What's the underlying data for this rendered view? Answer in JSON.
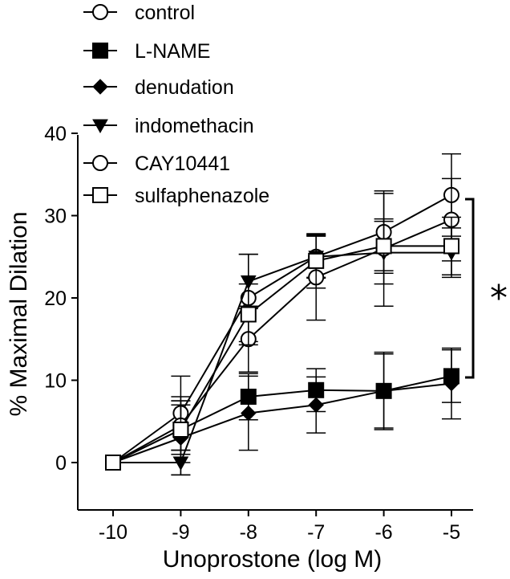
{
  "chart_data": {
    "type": "line",
    "title": "",
    "xlabel": "Unoprostone (log M)",
    "ylabel": "% Maximal Dilation",
    "xlim": [
      -10,
      -5
    ],
    "ylim": [
      0,
      40
    ],
    "x_ticks": [
      -10,
      -9,
      -8,
      -7,
      -6,
      -5
    ],
    "x_tick_labels": [
      "-10",
      "-9",
      "-8",
      "-7",
      "-6",
      "-5"
    ],
    "y_ticks": [
      0,
      10,
      20,
      30,
      40
    ],
    "y_tick_labels": [
      "0",
      "10",
      "20",
      "30",
      "40"
    ],
    "grid": false,
    "legend_position": "top-left",
    "x": [
      -10,
      -9,
      -8,
      -7,
      -6,
      -5
    ],
    "series": [
      {
        "name": "control",
        "marker": "circle-open",
        "values": [
          0,
          6,
          20,
          25,
          28,
          32.5
        ],
        "errors": [
          0,
          4.5,
          5.3,
          2.6,
          4.7,
          5
        ]
      },
      {
        "name": "L-NAME",
        "marker": "square-filled",
        "values": [
          0,
          4,
          8,
          8.8,
          8.7,
          10.5
        ],
        "errors": [
          0,
          4,
          2.8,
          2.6,
          4.5,
          3.2
        ]
      },
      {
        "name": "denudation",
        "marker": "diamond-filled",
        "values": [
          0,
          3,
          6,
          7,
          8.7,
          9.6
        ],
        "errors": [
          0,
          4.5,
          4.5,
          3.4,
          4.7,
          4.3
        ]
      },
      {
        "name": "indomethacin",
        "marker": "triangle-down-filled",
        "values": [
          0,
          0,
          22,
          25,
          25.5,
          25.5
        ],
        "errors": [
          0,
          1.5,
          3.3,
          2.5,
          3.8,
          3
        ]
      },
      {
        "name": "CAY10441",
        "marker": "circle-open",
        "values": [
          0,
          4.5,
          15,
          22.5,
          26,
          29.5
        ],
        "errors": [
          0,
          3,
          4,
          5.2,
          7,
          5
        ]
      },
      {
        "name": "sulfaphenazole",
        "marker": "square-open",
        "values": [
          0,
          4,
          18,
          24.5,
          26.3,
          26.3
        ],
        "errors": [
          0,
          3,
          3.7,
          3.3,
          3.3,
          3.5
        ]
      }
    ],
    "annotations": [
      {
        "text": "*",
        "kind": "significance-bracket",
        "from_value": 10.5,
        "to_value": 32
      }
    ]
  }
}
